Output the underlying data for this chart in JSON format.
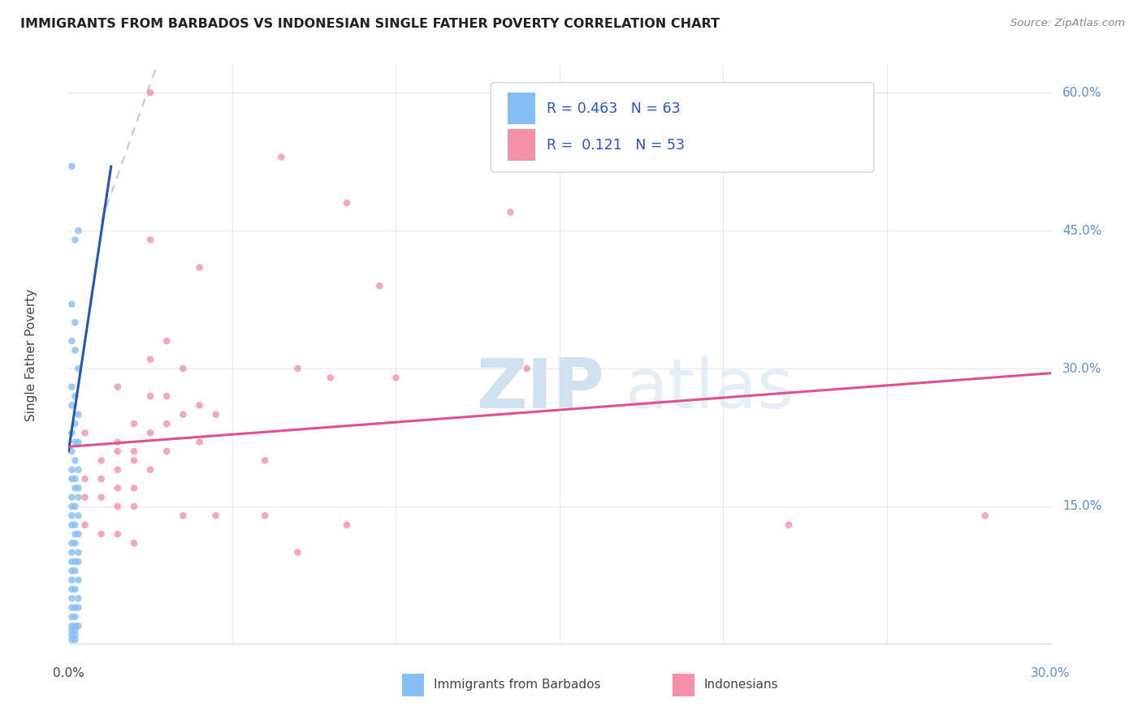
{
  "title": "IMMIGRANTS FROM BARBADOS VS INDONESIAN SINGLE FATHER POVERTY CORRELATION CHART",
  "source": "Source: ZipAtlas.com",
  "ylabel": "Single Father Poverty",
  "xlim": [
    0.0,
    0.3
  ],
  "ylim": [
    0.0,
    0.63
  ],
  "right_ytick_vals": [
    0.15,
    0.3,
    0.45,
    0.6
  ],
  "right_ytick_labels": [
    "15.0%",
    "30.0%",
    "45.0%",
    "60.0%"
  ],
  "barbados_scatter": [
    [
      0.001,
      0.52
    ],
    [
      0.003,
      0.45
    ],
    [
      0.002,
      0.44
    ],
    [
      0.001,
      0.37
    ],
    [
      0.002,
      0.35
    ],
    [
      0.001,
      0.33
    ],
    [
      0.002,
      0.32
    ],
    [
      0.003,
      0.3
    ],
    [
      0.001,
      0.28
    ],
    [
      0.002,
      0.27
    ],
    [
      0.001,
      0.26
    ],
    [
      0.003,
      0.25
    ],
    [
      0.002,
      0.24
    ],
    [
      0.001,
      0.23
    ],
    [
      0.003,
      0.22
    ],
    [
      0.002,
      0.22
    ],
    [
      0.001,
      0.21
    ],
    [
      0.002,
      0.2
    ],
    [
      0.001,
      0.19
    ],
    [
      0.003,
      0.19
    ],
    [
      0.002,
      0.18
    ],
    [
      0.001,
      0.18
    ],
    [
      0.003,
      0.17
    ],
    [
      0.002,
      0.17
    ],
    [
      0.001,
      0.16
    ],
    [
      0.003,
      0.16
    ],
    [
      0.002,
      0.15
    ],
    [
      0.001,
      0.15
    ],
    [
      0.003,
      0.14
    ],
    [
      0.001,
      0.14
    ],
    [
      0.002,
      0.13
    ],
    [
      0.001,
      0.13
    ],
    [
      0.003,
      0.12
    ],
    [
      0.002,
      0.12
    ],
    [
      0.001,
      0.11
    ],
    [
      0.002,
      0.11
    ],
    [
      0.001,
      0.1
    ],
    [
      0.003,
      0.1
    ],
    [
      0.002,
      0.09
    ],
    [
      0.001,
      0.09
    ],
    [
      0.003,
      0.09
    ],
    [
      0.002,
      0.08
    ],
    [
      0.001,
      0.08
    ],
    [
      0.003,
      0.07
    ],
    [
      0.001,
      0.07
    ],
    [
      0.002,
      0.06
    ],
    [
      0.001,
      0.06
    ],
    [
      0.003,
      0.05
    ],
    [
      0.001,
      0.05
    ],
    [
      0.002,
      0.04
    ],
    [
      0.001,
      0.04
    ],
    [
      0.003,
      0.04
    ],
    [
      0.002,
      0.03
    ],
    [
      0.001,
      0.03
    ],
    [
      0.002,
      0.02
    ],
    [
      0.001,
      0.02
    ],
    [
      0.003,
      0.02
    ],
    [
      0.001,
      0.015
    ],
    [
      0.002,
      0.015
    ],
    [
      0.001,
      0.01
    ],
    [
      0.002,
      0.01
    ],
    [
      0.001,
      0.005
    ],
    [
      0.002,
      0.005
    ]
  ],
  "indonesian_scatter": [
    [
      0.025,
      0.6
    ],
    [
      0.065,
      0.53
    ],
    [
      0.085,
      0.48
    ],
    [
      0.135,
      0.47
    ],
    [
      0.025,
      0.44
    ],
    [
      0.04,
      0.41
    ],
    [
      0.095,
      0.39
    ],
    [
      0.03,
      0.33
    ],
    [
      0.025,
      0.31
    ],
    [
      0.035,
      0.3
    ],
    [
      0.07,
      0.3
    ],
    [
      0.08,
      0.29
    ],
    [
      0.1,
      0.29
    ],
    [
      0.14,
      0.3
    ],
    [
      0.015,
      0.28
    ],
    [
      0.025,
      0.27
    ],
    [
      0.03,
      0.27
    ],
    [
      0.04,
      0.26
    ],
    [
      0.035,
      0.25
    ],
    [
      0.02,
      0.24
    ],
    [
      0.03,
      0.24
    ],
    [
      0.045,
      0.25
    ],
    [
      0.005,
      0.23
    ],
    [
      0.015,
      0.22
    ],
    [
      0.025,
      0.23
    ],
    [
      0.04,
      0.22
    ],
    [
      0.015,
      0.21
    ],
    [
      0.02,
      0.21
    ],
    [
      0.03,
      0.21
    ],
    [
      0.06,
      0.2
    ],
    [
      0.01,
      0.2
    ],
    [
      0.015,
      0.19
    ],
    [
      0.02,
      0.2
    ],
    [
      0.025,
      0.19
    ],
    [
      0.005,
      0.18
    ],
    [
      0.01,
      0.18
    ],
    [
      0.015,
      0.17
    ],
    [
      0.02,
      0.17
    ],
    [
      0.005,
      0.16
    ],
    [
      0.01,
      0.16
    ],
    [
      0.015,
      0.15
    ],
    [
      0.02,
      0.15
    ],
    [
      0.035,
      0.14
    ],
    [
      0.045,
      0.14
    ],
    [
      0.06,
      0.14
    ],
    [
      0.085,
      0.13
    ],
    [
      0.005,
      0.13
    ],
    [
      0.01,
      0.12
    ],
    [
      0.015,
      0.12
    ],
    [
      0.02,
      0.11
    ],
    [
      0.07,
      0.1
    ],
    [
      0.22,
      0.13
    ],
    [
      0.28,
      0.14
    ]
  ],
  "barbados_trendline": {
    "x": [
      0.0,
      0.013
    ],
    "y": [
      0.21,
      0.52
    ]
  },
  "barbados_trendline_dashed": {
    "x": [
      0.01,
      0.03
    ],
    "y": [
      0.46,
      0.66
    ]
  },
  "indonesian_trendline": {
    "x": [
      0.0,
      0.3
    ],
    "y": [
      0.215,
      0.295
    ]
  },
  "scatter_size": 38,
  "scatter_alpha": 0.8,
  "trendline_lw": 2.2,
  "watermark_zip": "ZIP",
  "watermark_atlas": "atlas",
  "barbados_color": "#85bef5",
  "indonesian_color": "#f590aa",
  "barbados_trendline_color": "#2255bb",
  "indonesian_trendline_color": "#e05090",
  "barbados_trendline_dash_color": "#b8cce8",
  "grid_color": "#e8e8e8",
  "background_color": "#ffffff",
  "title_color": "#222222",
  "source_color": "#888888",
  "axis_label_color": "#444444",
  "right_tick_color": "#5590dd",
  "legend_R_color": "#2255cc",
  "legend_N_color": "#2255cc"
}
